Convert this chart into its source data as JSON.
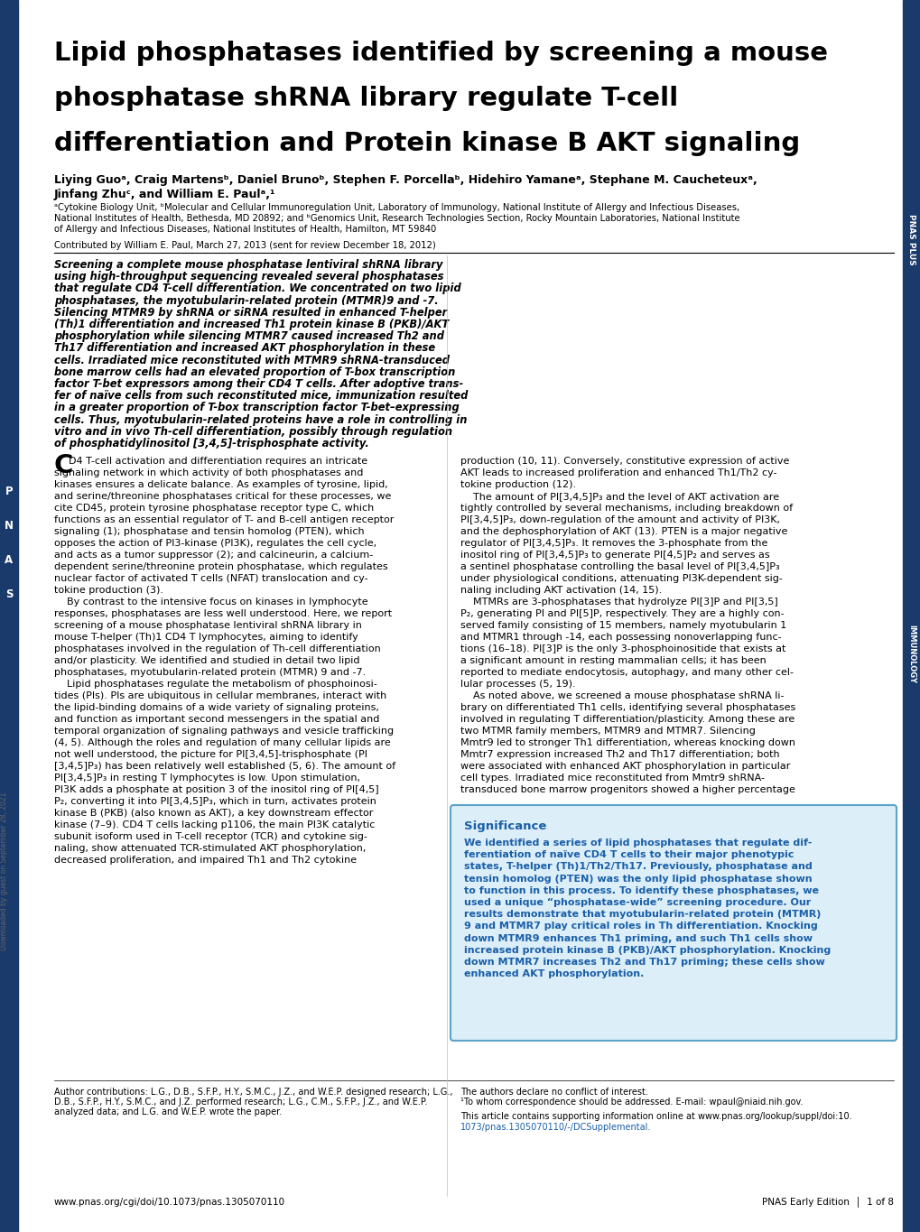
{
  "title_line1": "Lipid phosphatases identified by screening a mouse",
  "title_line2": "phosphatase shRNA library regulate T-cell",
  "title_line3": "differentiation and Protein kinase B AKT signaling",
  "authors_line1": "Liying Guoᵃ, Craig Martensᵇ, Daniel Brunoᵇ, Stephen F. Porcellaᵇ, Hidehiro Yamaneᵃ, Stephane M. Caucheteuxᵃ,",
  "authors_line2": "Jinfang Zhuᶜ, and William E. Paulᵃ,¹",
  "affil1": "ᵃCytokine Biology Unit, ᵇMolecular and Cellular Immunoregulation Unit, Laboratory of Immunology, National Institute of Allergy and Infectious Diseases,",
  "affil2": "National Institutes of Health, Bethesda, MD 20892; and ᵇGenomics Unit, Research Technologies Section, Rocky Mountain Laboratories, National Institute",
  "affil3": "of Allergy and Infectious Diseases, National Institutes of Health, Hamilton, MT 59840",
  "contributed": "Contributed by William E. Paul, March 27, 2013 (sent for review December 18, 2012)",
  "abstract_lines": [
    "Screening a complete mouse phosphatase lentiviral shRNA library",
    "using high-throughput sequencing revealed several phosphatases",
    "that regulate CD4 T-cell differentiation. We concentrated on two lipid",
    "phosphatases, the myotubularin-related protein (MTMR)9 and -7.",
    "Silencing MTMR9 by shRNA or siRNA resulted in enhanced T-helper",
    "(Th)1 differentiation and increased Th1 protein kinase B (PKB)/AKT",
    "phosphorylation while silencing MTMR7 caused increased Th2 and",
    "Th17 differentiation and increased AKT phosphorylation in these",
    "cells. Irradiated mice reconstituted with MTMR9 shRNA-transduced",
    "bone marrow cells had an elevated proportion of T-box transcription",
    "factor T-bet expressors among their CD4 T cells. After adoptive trans-",
    "fer of naïve cells from such reconstituted mice, immunization resulted",
    "in a greater proportion of T-box transcription factor T-bet–expressing",
    "cells. Thus, myotubularin-related proteins have a role in controlling in",
    "vitro and in vivo Th-cell differentiation, possibly through regulation",
    "of phosphatidylinositol [3,4,5]-trisphosphate activity."
  ],
  "body_left_lines": [
    "D4 T-cell activation and differentiation requires an intricate",
    "signaling network in which activity of both phosphatases and",
    "kinases ensures a delicate balance. As examples of tyrosine, lipid,",
    "and serine/threonine phosphatases critical for these processes, we",
    "cite CD45, protein tyrosine phosphatase receptor type C, which",
    "functions as an essential regulator of T- and B-cell antigen receptor",
    "signaling (1); phosphatase and tensin homolog (PTEN), which",
    "opposes the action of PI3-kinase (PI3K), regulates the cell cycle,",
    "and acts as a tumor suppressor (2); and calcineurin, a calcium-",
    "dependent serine/threonine protein phosphatase, which regulates",
    "nuclear factor of activated T cells (NFAT) translocation and cy-",
    "tokine production (3).",
    "    By contrast to the intensive focus on kinases in lymphocyte",
    "responses, phosphatases are less well understood. Here, we report",
    "screening of a mouse phosphatase lentiviral shRNA library in",
    "mouse T-helper (Th)1 CD4 T lymphocytes, aiming to identify",
    "phosphatases involved in the regulation of Th-cell differentiation",
    "and/or plasticity. We identified and studied in detail two lipid",
    "phosphatases, myotubularin-related protein (MTMR) 9 and -7.",
    "    Lipid phosphatases regulate the metabolism of phosphoinosi-",
    "tides (PIs). PIs are ubiquitous in cellular membranes, interact with",
    "the lipid-binding domains of a wide variety of signaling proteins,",
    "and function as important second messengers in the spatial and",
    "temporal organization of signaling pathways and vesicle trafficking",
    "(4, 5). Although the roles and regulation of many cellular lipids are",
    "not well understood, the picture for PI[3,4,5]-trisphosphate (PI",
    "[3,4,5]P₃) has been relatively well established (5, 6). The amount of",
    "PI[3,4,5]P₃ in resting T lymphocytes is low. Upon stimulation,",
    "PI3K adds a phosphate at position 3 of the inositol ring of PI[4,5]",
    "P₂, converting it into PI[3,4,5]P₃, which in turn, activates protein",
    "kinase B (PKB) (also known as AKT), a key downstream effector",
    "kinase (7–9). CD4 T cells lacking p1106, the main PI3K catalytic",
    "subunit isoform used in T-cell receptor (TCR) and cytokine sig-",
    "naling, show attenuated TCR-stimulated AKT phosphorylation,",
    "decreased proliferation, and impaired Th1 and Th2 cytokine"
  ],
  "body_right_lines": [
    "production (10, 11). Conversely, constitutive expression of active",
    "AKT leads to increased proliferation and enhanced Th1/Th2 cy-",
    "tokine production (12).",
    "    The amount of PI[3,4,5]P₃ and the level of AKT activation are",
    "tightly controlled by several mechanisms, including breakdown of",
    "PI[3,4,5]P₃, down-regulation of the amount and activity of PI3K,",
    "and the dephosphorylation of AKT (13). PTEN is a major negative",
    "regulator of PI[3,4,5]P₃. It removes the 3-phosphate from the",
    "inositol ring of PI[3,4,5]P₃ to generate PI[4,5]P₂ and serves as",
    "a sentinel phosphatase controlling the basal level of PI[3,4,5]P₃",
    "under physiological conditions, attenuating PI3K-dependent sig-",
    "naling including AKT activation (14, 15).",
    "    MTMRs are 3-phosphatases that hydrolyze PI[3]P and PI[3,5]",
    "P₂, generating PI and PI[5]P, respectively. They are a highly con-",
    "served family consisting of 15 members, namely myotubularin 1",
    "and MTMR1 through -14, each possessing nonoverlapping func-",
    "tions (16–18). PI[3]P is the only 3-phosphoinositide that exists at",
    "a significant amount in resting mammalian cells; it has been",
    "reported to mediate endocytosis, autophagy, and many other cel-",
    "lular processes (5, 19).",
    "    As noted above, we screened a mouse phosphatase shRNA li-",
    "brary on differentiated Th1 cells, identifying several phosphatases",
    "involved in regulating T differentiation/plasticity. Among these are",
    "two MTMR family members, MTMR9 and MTMR7. Silencing",
    "Mmtr9 led to stronger Th1 differentiation, whereas knocking down",
    "Mmtr7 expression increased Th2 and Th17 differentiation; both",
    "were associated with enhanced AKT phosphorylation in particular",
    "cell types. Irradiated mice reconstituted from Mmtr9 shRNA-",
    "transduced bone marrow progenitors showed a higher percentage"
  ],
  "sig_title": "Significance",
  "sig_lines": [
    "We identified a series of lipid phosphatases that regulate dif-",
    "ferentiation of naïve CD4 T cells to their major phenotypic",
    "states, T-helper (Th)1/Th2/Th17. Previously, phosphatase and",
    "tensin homolog (PTEN) was the only lipid phosphatase shown",
    "to function in this process. To identify these phosphatases, we",
    "used a unique “phosphatase-wide” screening procedure. Our",
    "results demonstrate that myotubularin-related protein (MTMR)",
    "9 and MTMR7 play critical roles in Th differentiation. Knocking",
    "down MTMR9 enhances Th1 priming, and such Th1 cells show",
    "increased protein kinase B (PKB)/AKT phosphorylation. Knocking",
    "down MTMR7 increases Th2 and Th17 priming; these cells show",
    "enhanced AKT phosphorylation."
  ],
  "footer_lines": [
    "Author contributions: L.G., D.B., S.F.P., H.Y., S.M.C., J.Z., and W.E.P. designed research; L.G.,",
    "D.B., S.F.P., H.Y., S.M.C., and J.Z. performed research; L.G., C.M., S.F.P., J.Z., and W.E.P.",
    "analyzed data; and L.G. and W.E.P. wrote the paper."
  ],
  "footer_conflict": "The authors declare no conflict of interest.",
  "footer_correspond": "¹To whom correspondence should be addressed. E-mail: wpaul@niaid.nih.gov.",
  "footer_support1": "This article contains supporting information online at www.pnas.org/lookup/suppl/doi:10.",
  "footer_support2": "1073/pnas.1305070110/-/DCSupplemental.",
  "footer_url": "www.pnas.org/cgi/doi/10.1073/pnas.1305070110",
  "footer_edition": "PNAS Early Edition  │  1 of 8",
  "sidebar_text": "Downloaded by guest on September 28, 2021",
  "blue_dark": "#1a3a6b",
  "blue_sig_text": "#1a5fa8",
  "blue_sig_bg": "#dceef8",
  "blue_sig_border": "#5ba3c9"
}
